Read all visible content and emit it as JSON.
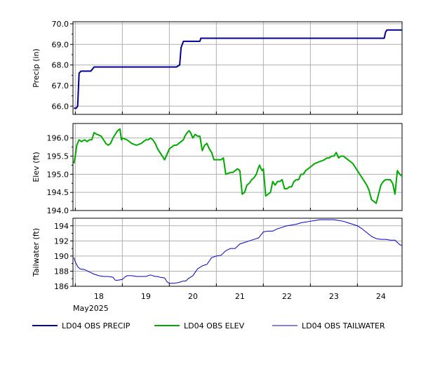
{
  "chart_data": [
    {
      "type": "line",
      "ylabel": "Precip (in)",
      "ylim": [
        65.6,
        70.1
      ],
      "yticks": [
        "66.0",
        "67.0",
        "68.0",
        "69.0",
        "70.0"
      ],
      "grid": true,
      "series": [
        {
          "name": "LD04 OBS PRECIP",
          "color": "#000099",
          "x": [
            17.47,
            17.52,
            17.55,
            17.58,
            17.62,
            17.75,
            17.83,
            17.9,
            17.92,
            18.0,
            19.5,
            19.65,
            19.72,
            19.75,
            19.8,
            19.85,
            20.15,
            20.17,
            20.2,
            20.3,
            23.5,
            24.0,
            24.07,
            24.1,
            24.13,
            24.2,
            24.45
          ],
          "y": [
            65.9,
            65.9,
            66.0,
            67.6,
            67.7,
            67.7,
            67.7,
            67.9,
            67.9,
            67.9,
            67.9,
            67.9,
            68.0,
            68.85,
            69.15,
            69.15,
            69.15,
            69.3,
            69.3,
            69.3,
            69.3,
            69.3,
            69.3,
            69.6,
            69.7,
            69.7,
            69.7
          ]
        }
      ]
    },
    {
      "type": "line",
      "ylabel": "Elev (ft)",
      "ylim": [
        194.0,
        196.4
      ],
      "yticks": [
        "194.0",
        "194.5",
        "195.0",
        "195.5",
        "196.0"
      ],
      "grid": true,
      "series": [
        {
          "name": "LD04 OBS ELEV",
          "color": "#00AA00",
          "x": [
            17.47,
            17.5,
            17.53,
            17.58,
            17.63,
            17.7,
            17.75,
            17.8,
            17.85,
            17.9,
            17.95,
            17.97,
            18.05,
            18.1,
            18.15,
            18.2,
            18.25,
            18.3,
            18.35,
            18.4,
            18.45,
            18.48,
            18.5,
            18.6,
            18.7,
            18.8,
            18.9,
            19.0,
            19.05,
            19.1,
            19.15,
            19.2,
            19.25,
            19.3,
            19.4,
            19.5,
            19.6,
            19.65,
            19.7,
            19.75,
            19.8,
            19.83,
            19.88,
            19.92,
            19.95,
            20.0,
            20.05,
            20.1,
            20.15,
            20.2,
            20.25,
            20.3,
            20.35,
            20.4,
            20.45,
            20.5,
            20.55,
            20.58,
            20.6,
            20.65,
            20.7,
            20.8,
            20.85,
            20.9,
            20.95,
            21.0,
            21.05,
            21.1,
            21.15,
            21.2,
            21.25,
            21.3,
            21.35,
            21.4,
            21.42,
            21.45,
            21.48,
            21.5,
            21.55,
            21.6,
            21.65,
            21.7,
            21.75,
            21.8,
            21.85,
            21.9,
            21.95,
            22.0,
            22.05,
            22.1,
            22.15,
            22.2,
            22.25,
            22.3,
            22.35,
            22.4,
            22.5,
            22.6,
            22.7,
            22.8,
            22.85,
            22.9,
            22.95,
            23.0,
            23.05,
            23.1,
            23.15,
            23.2,
            23.25,
            23.3,
            23.35,
            23.4,
            23.5,
            23.6,
            23.7,
            23.75,
            23.8,
            23.9,
            24.0,
            24.05,
            24.1,
            24.15,
            24.2,
            24.25,
            24.3,
            24.35,
            24.4,
            24.45
          ],
          "y": [
            195.3,
            195.5,
            195.8,
            195.95,
            195.9,
            195.95,
            195.9,
            195.95,
            195.95,
            196.15,
            196.1,
            196.1,
            196.05,
            195.95,
            195.85,
            195.8,
            195.85,
            196.0,
            196.1,
            196.2,
            196.25,
            195.95,
            196.0,
            195.95,
            195.85,
            195.8,
            195.85,
            195.95,
            195.95,
            196.0,
            195.95,
            195.85,
            195.7,
            195.6,
            195.4,
            195.7,
            195.8,
            195.8,
            195.85,
            195.9,
            195.95,
            196.05,
            196.15,
            196.2,
            196.15,
            196.0,
            196.1,
            196.05,
            196.05,
            195.65,
            195.8,
            195.85,
            195.7,
            195.6,
            195.4,
            195.4,
            195.4,
            195.4,
            195.4,
            195.45,
            195.0,
            195.05,
            195.05,
            195.1,
            195.15,
            195.1,
            194.45,
            194.5,
            194.7,
            194.75,
            194.85,
            194.9,
            195.0,
            195.2,
            195.25,
            195.15,
            195.1,
            195.15,
            194.4,
            194.45,
            194.5,
            194.8,
            194.7,
            194.8,
            194.8,
            194.85,
            194.6,
            194.6,
            194.65,
            194.65,
            194.8,
            194.85,
            194.85,
            195.0,
            195.0,
            195.1,
            195.2,
            195.3,
            195.35,
            195.4,
            195.45,
            195.45,
            195.5,
            195.5,
            195.6,
            195.45,
            195.5,
            195.5,
            195.45,
            195.4,
            195.35,
            195.3,
            195.1,
            194.9,
            194.7,
            194.55,
            194.3,
            194.2,
            194.7,
            194.8,
            194.85,
            194.85,
            194.85,
            194.75,
            194.45,
            195.1,
            195.0,
            194.95
          ]
        }
      ]
    },
    {
      "type": "line",
      "ylabel": "Tailwater (ft)",
      "ylim": [
        186.0,
        195.0
      ],
      "yticks": [
        "186",
        "188",
        "190",
        "192",
        "194"
      ],
      "grid": true,
      "xlabel": "",
      "xticks": [
        "18",
        "19",
        "20",
        "21",
        "22",
        "23",
        "24"
      ],
      "xsublabel": "May2025",
      "series": [
        {
          "name": "LD04 OBS TAILWATER",
          "color": "#0000CC",
          "x": [
            17.47,
            17.5,
            17.55,
            17.6,
            17.7,
            17.8,
            17.9,
            18.0,
            18.1,
            18.2,
            18.3,
            18.35,
            18.4,
            18.5,
            18.55,
            18.6,
            18.7,
            18.8,
            18.9,
            19.0,
            19.1,
            19.2,
            19.25,
            19.3,
            19.4,
            19.45,
            19.5,
            19.55,
            19.6,
            19.7,
            19.8,
            19.85,
            19.9,
            20.0,
            20.1,
            20.2,
            20.3,
            20.4,
            20.5,
            20.6,
            20.7,
            20.8,
            20.9,
            21.0,
            21.1,
            21.2,
            21.3,
            21.4,
            21.5,
            21.6,
            21.7,
            21.8,
            21.9,
            22.0,
            22.1,
            22.2,
            22.3,
            22.4,
            22.5,
            22.6,
            22.7,
            22.8,
            22.9,
            23.0,
            23.1,
            23.2,
            23.3,
            23.4,
            23.5,
            23.6,
            23.7,
            23.8,
            23.9,
            24.0,
            24.1,
            24.2,
            24.3,
            24.35,
            24.4,
            24.45
          ],
          "y": [
            189.8,
            189.2,
            188.6,
            188.3,
            188.2,
            187.9,
            187.6,
            187.4,
            187.3,
            187.3,
            187.2,
            186.8,
            186.8,
            186.9,
            187.2,
            187.4,
            187.4,
            187.3,
            187.3,
            187.3,
            187.5,
            187.3,
            187.3,
            187.2,
            187.1,
            186.6,
            186.4,
            186.4,
            186.4,
            186.5,
            186.7,
            186.7,
            187.0,
            187.4,
            188.3,
            188.7,
            188.9,
            189.8,
            190.0,
            190.1,
            190.7,
            191.0,
            191.0,
            191.6,
            191.8,
            192.0,
            192.2,
            192.4,
            193.2,
            193.3,
            193.3,
            193.6,
            193.8,
            194.0,
            194.1,
            194.2,
            194.4,
            194.5,
            194.6,
            194.7,
            194.8,
            194.8,
            194.8,
            194.8,
            194.7,
            194.6,
            194.4,
            194.2,
            194.0,
            193.6,
            193.1,
            192.6,
            192.3,
            192.2,
            192.2,
            192.1,
            192.1,
            191.8,
            191.5,
            191.4
          ]
        }
      ]
    }
  ],
  "legend": [
    {
      "label": "LD04 OBS PRECIP",
      "color": "#000099"
    },
    {
      "label": "LD04 OBS ELEV",
      "color": "#00AA00"
    },
    {
      "label": "LD04 OBS TAILWATER",
      "color": "#0000CC"
    }
  ]
}
